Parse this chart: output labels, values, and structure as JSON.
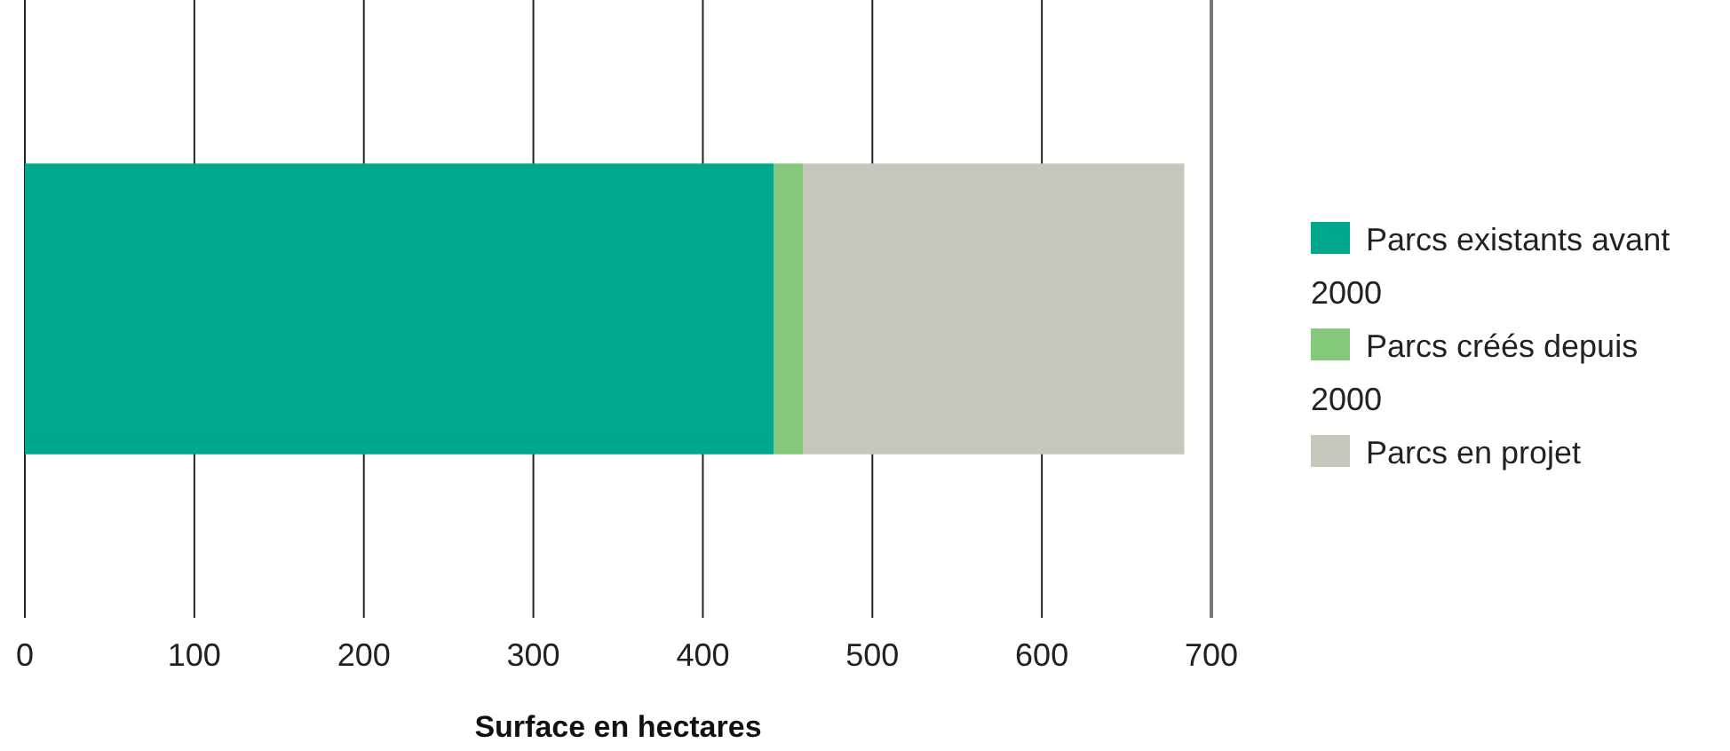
{
  "chart_data": {
    "type": "bar",
    "orientation": "horizontal",
    "stacked": true,
    "categories": [
      null
    ],
    "series": [
      {
        "name": "Parcs existants avant 2000",
        "color": "#00a88e",
        "values": [
          442
        ]
      },
      {
        "name": "Parcs créés depuis 2000",
        "color": "#86c87c",
        "values": [
          17
        ]
      },
      {
        "name": "Parcs en projet",
        "color": "#c5c7ba",
        "values": [
          225
        ]
      }
    ],
    "xlim": [
      0,
      700
    ],
    "xticks": [
      0,
      100,
      200,
      300,
      400,
      500,
      600,
      700
    ],
    "xlabel": "Surface en hectares",
    "grid": "x",
    "legend": "right"
  }
}
